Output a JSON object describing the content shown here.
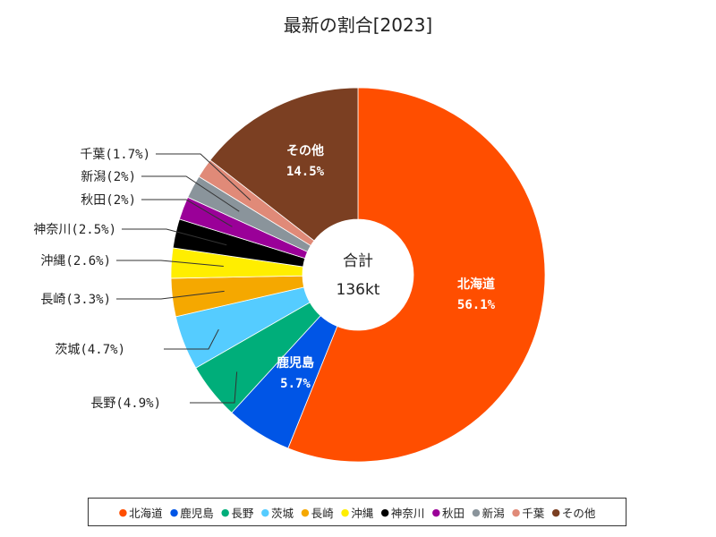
{
  "chart_data": {
    "type": "pie",
    "title": "最新の割合[2023]",
    "donut": true,
    "center": {
      "line1": "合計",
      "line2": "136kt"
    },
    "slices": [
      {
        "name": "北海道",
        "value": 56.1,
        "color": "#ff4e00",
        "label_text": "56.1%",
        "label_mode": "inside"
      },
      {
        "name": "鹿児島",
        "value": 5.7,
        "color": "#0055e6",
        "label_text": "5.7%",
        "label_mode": "inside"
      },
      {
        "name": "長野",
        "value": 4.9,
        "color": "#00ae7a",
        "label_text": "長野(4.9%)",
        "label_mode": "outside"
      },
      {
        "name": "茨城",
        "value": 4.7,
        "color": "#55ccff",
        "label_text": "茨城(4.7%)",
        "label_mode": "outside"
      },
      {
        "name": "長崎",
        "value": 3.3,
        "color": "#f5a800",
        "label_text": "長崎(3.3%)",
        "label_mode": "outside"
      },
      {
        "name": "沖縄",
        "value": 2.6,
        "color": "#ffee00",
        "label_text": "沖縄(2.6%)",
        "label_mode": "outside"
      },
      {
        "name": "神奈川",
        "value": 2.5,
        "color": "#000000",
        "label_text": "神奈川(2.5%)",
        "label_mode": "outside"
      },
      {
        "name": "秋田",
        "value": 2.0,
        "color": "#9a0098",
        "label_text": "秋田(2%)",
        "label_mode": "outside"
      },
      {
        "name": "新潟",
        "value": 2.0,
        "color": "#8a949b",
        "label_text": "新潟(2%)",
        "label_mode": "outside"
      },
      {
        "name": "千葉",
        "value": 1.7,
        "color": "#e08a78",
        "label_text": "千葉(1.7%)",
        "label_mode": "outside"
      },
      {
        "name": "その他",
        "value": 14.5,
        "color": "#7b3f22",
        "label_text": "14.5%",
        "label_mode": "inside"
      }
    ],
    "legend": {
      "position": "bottom"
    }
  }
}
